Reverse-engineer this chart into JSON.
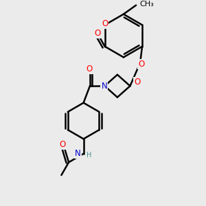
{
  "bg_color": "#ebebeb",
  "bond_color": "#000000",
  "atom_colors": {
    "O": "#ff0000",
    "N": "#0000cd",
    "H": "#4a9090",
    "C": "#000000"
  },
  "line_width": 1.8,
  "font_size": 8.5,
  "fig_size": [
    3.0,
    3.0
  ],
  "dpi": 100
}
